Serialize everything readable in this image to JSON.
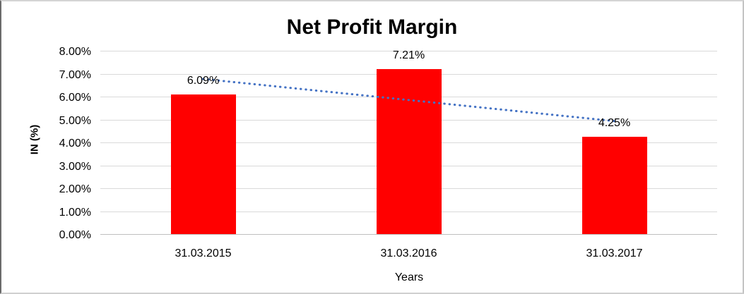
{
  "chart_data": {
    "type": "bar",
    "title": "Net Profit Margin",
    "categories": [
      "31.03.2015",
      "31.03.2016",
      "31.03.2017"
    ],
    "values": [
      6.09,
      7.21,
      4.25
    ],
    "data_labels": [
      "6.09%",
      "7.21%",
      "4.25%"
    ],
    "xlabel": "Years",
    "ylabel": "IN (%)",
    "ylim": [
      0,
      8
    ],
    "ytick_labels": [
      "0.00%",
      "1.00%",
      "2.00%",
      "3.00%",
      "4.00%",
      "5.00%",
      "6.00%",
      "7.00%",
      "8.00%"
    ],
    "grid": true,
    "legend": "none",
    "bar_color": "#FF0000",
    "gridline_color": "#D9D9D9",
    "baseline_color": "#BFBFBF",
    "trendline": {
      "type": "linear",
      "style": "dotted",
      "color": "#4472C4",
      "start_value": 6.77,
      "end_value": 4.93
    }
  }
}
